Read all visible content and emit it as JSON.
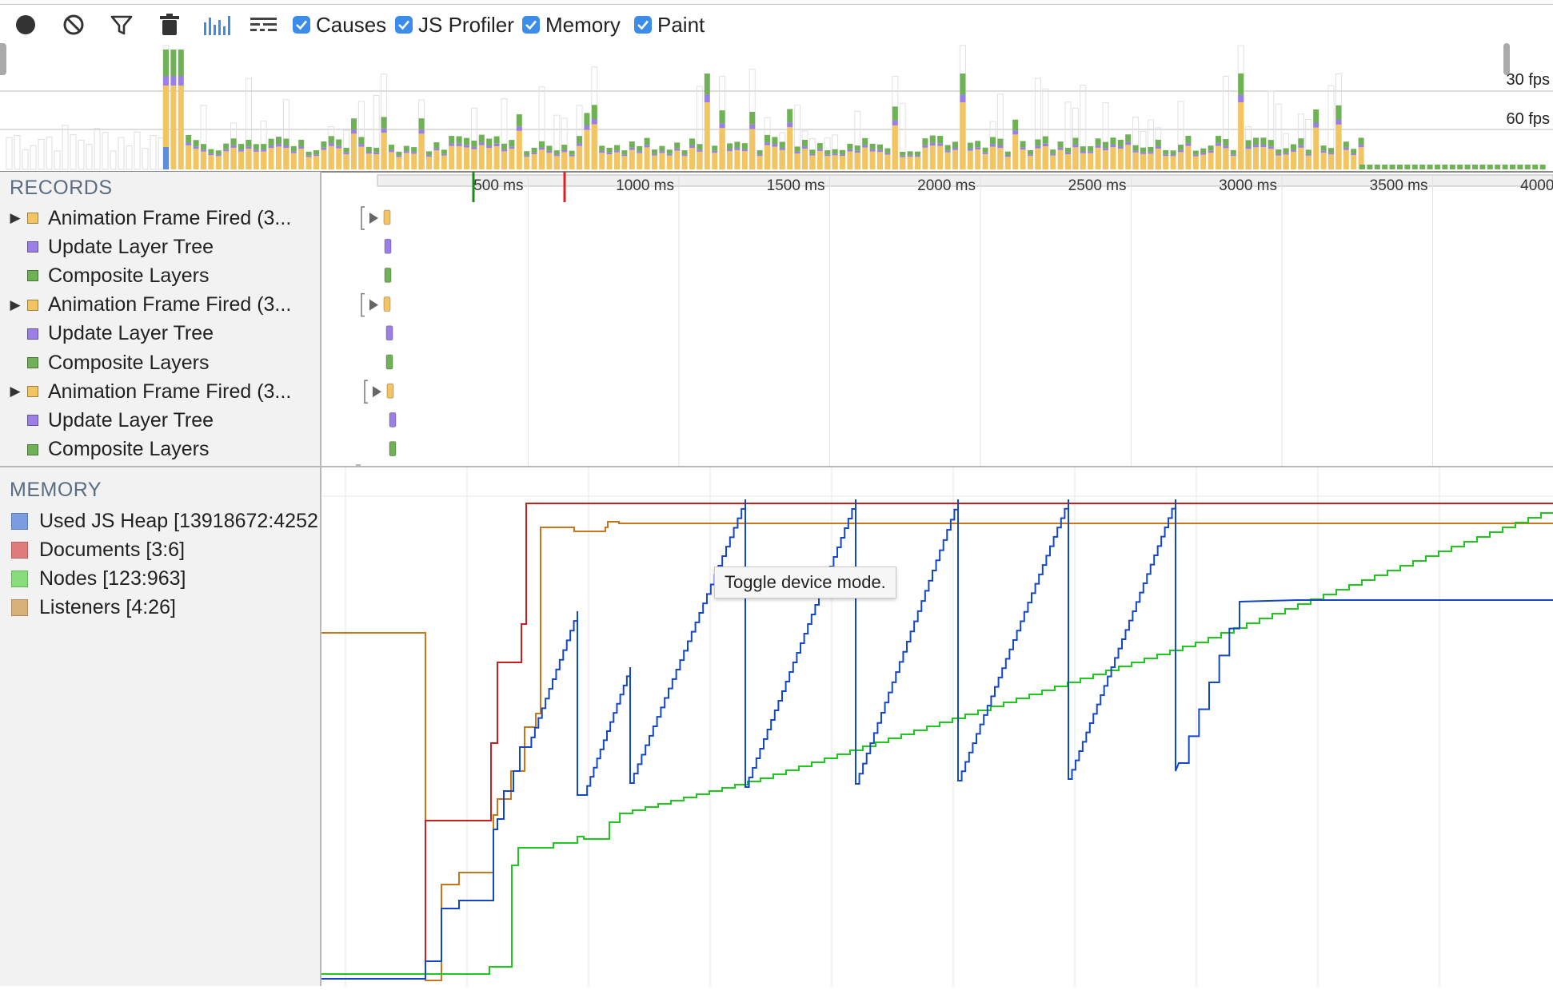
{
  "toolbar": {
    "record_icon": "record-icon",
    "clear_icon": "clear-icon",
    "filter_icon": "filter-icon",
    "gc_icon": "trash-icon",
    "bar_view_icon": "bar-chart-icon",
    "flame_view_icon": "flame-chart-icon",
    "checkboxes": [
      {
        "label": "Causes",
        "checked": true
      },
      {
        "label": "JS Profiler",
        "checked": true
      },
      {
        "label": "Memory",
        "checked": true
      },
      {
        "label": "Paint",
        "checked": true
      }
    ]
  },
  "overview": {
    "fps_lines": [
      "30 fps",
      "60 fps"
    ],
    "colors": {
      "scripting": "#f2c462",
      "rendering": "#9b7fe6",
      "painting": "#6fb155",
      "loading": "#5e8ed8"
    }
  },
  "records": {
    "title": "RECORDS",
    "items": [
      {
        "label": "Animation Frame Fired (3...",
        "color": "#f2c462",
        "expandable": true
      },
      {
        "label": "Update Layer Tree",
        "color": "#9b7fe6",
        "expandable": false
      },
      {
        "label": "Composite Layers",
        "color": "#6fb155",
        "expandable": false
      },
      {
        "label": "Animation Frame Fired (3...",
        "color": "#f2c462",
        "expandable": true
      },
      {
        "label": "Update Layer Tree",
        "color": "#9b7fe6",
        "expandable": false
      },
      {
        "label": "Composite Layers",
        "color": "#6fb155",
        "expandable": false
      },
      {
        "label": "Animation Frame Fired (3...",
        "color": "#f2c462",
        "expandable": true
      },
      {
        "label": "Update Layer Tree",
        "color": "#9b7fe6",
        "expandable": false
      },
      {
        "label": "Composite Layers",
        "color": "#6fb155",
        "expandable": false
      }
    ]
  },
  "ruler": {
    "ticks": [
      "500 ms",
      "1000 ms",
      "1500 ms",
      "2000 ms",
      "2500 ms",
      "3000 ms",
      "3500 ms",
      "4000 ms"
    ],
    "dom_content_loaded_color": "#1a8a1a",
    "load_color": "#e02020"
  },
  "memory": {
    "title": "MEMORY",
    "legend": [
      {
        "label": "Used JS Heap [13918672:4252",
        "color": "#7a9ce0",
        "line": "#1446c8"
      },
      {
        "label": "Documents [3:6]",
        "color": "#e07b7b",
        "line": "#c81e1e"
      },
      {
        "label": "Nodes [123:963]",
        "color": "#86dd7a",
        "line": "#1ec81e"
      },
      {
        "label": "Listeners [4:26]",
        "color": "#d8b07a",
        "line": "#c8761e"
      }
    ]
  },
  "tooltip": {
    "text": "Toggle device mode."
  }
}
